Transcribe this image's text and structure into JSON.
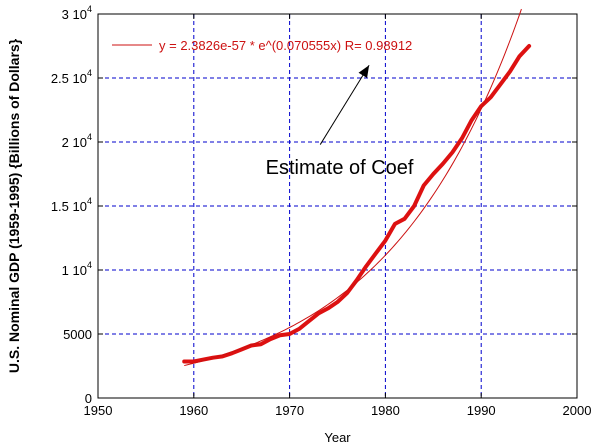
{
  "chart_data": {
    "type": "line",
    "xlabel": "Year",
    "ylabel": "U.S. Nominal GDP (1959-1995) {Billions of Dollars}",
    "xlim": [
      1950,
      2000
    ],
    "ylim": [
      0,
      30000
    ],
    "x_ticks": [
      1950,
      1960,
      1970,
      1980,
      1990,
      2000
    ],
    "y_ticks": [
      {
        "value": 0,
        "mantissa": "0",
        "exponent": ""
      },
      {
        "value": 5000,
        "mantissa": "5000",
        "exponent": ""
      },
      {
        "value": 10000,
        "mantissa": "1 10",
        "exponent": "4"
      },
      {
        "value": 15000,
        "mantissa": "1.5 10",
        "exponent": "4"
      },
      {
        "value": 20000,
        "mantissa": "2 10",
        "exponent": "4"
      },
      {
        "value": 25000,
        "mantissa": "2.5 10",
        "exponent": "4"
      },
      {
        "value": 30000,
        "mantissa": "3 10",
        "exponent": "4"
      }
    ],
    "grid": true,
    "grid_color": "#0000cc",
    "series": [
      {
        "role": "data",
        "color": "#dd1111",
        "x": [
          1959,
          1960,
          1961,
          1962,
          1963,
          1964,
          1965,
          1966,
          1967,
          1968,
          1969,
          1970,
          1971,
          1972,
          1973,
          1974,
          1975,
          1976,
          1977,
          1978,
          1979,
          1980,
          1981,
          1982,
          1983,
          1984,
          1985,
          1986,
          1987,
          1988,
          1989,
          1990,
          1991,
          1992,
          1993,
          1994,
          1995
        ],
        "values": [
          2850,
          2850,
          3000,
          3150,
          3250,
          3500,
          3800,
          4100,
          4200,
          4600,
          4900,
          5000,
          5400,
          6000,
          6600,
          7000,
          7500,
          8200,
          9200,
          10300,
          11300,
          12300,
          13600,
          14000,
          15000,
          16600,
          17500,
          18300,
          19200,
          20300,
          21700,
          22800,
          23500,
          24500,
          25500,
          26700,
          27500
        ]
      },
      {
        "name": "y = 2.3826e-57 * e^(0.070555x) R= 0.98912",
        "role": "fit",
        "color": "#cc1111",
        "x_start": 1959,
        "x_end": 1994.2,
        "coefficient": 2.3826e-57,
        "rate": 0.070555
      }
    ],
    "legend_position": "top",
    "annotation": {
      "text": "Estimate of Coef",
      "x": 1967.5,
      "y": 17500,
      "arrow_from_x": 1973.2,
      "arrow_from_y": 19800,
      "arrow_to_x": 1978.3,
      "arrow_to_y": 26000
    }
  }
}
